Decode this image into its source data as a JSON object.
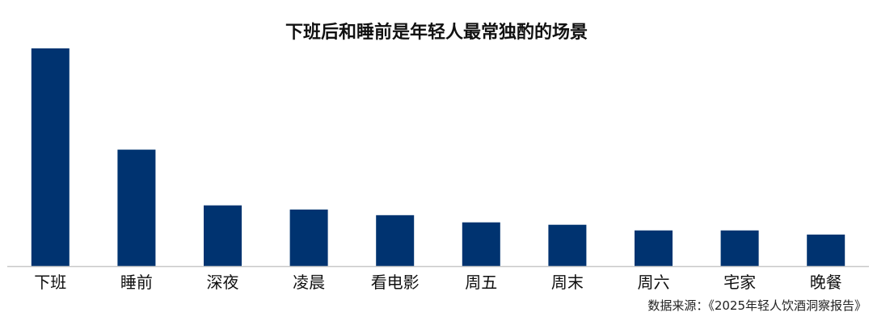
{
  "chart_data": {
    "type": "bar",
    "title": "下班后和睡前是年轻人最常独酌的场景",
    "categories": [
      "下班",
      "睡前",
      "深夜",
      "凌晨",
      "看电影",
      "周五",
      "周末",
      "周六",
      "宅家",
      "晚餐"
    ],
    "values": [
      100,
      53.5,
      27.9,
      26.0,
      23.4,
      20.1,
      19.0,
      16.4,
      16.4,
      14.5
    ],
    "xlabel": "",
    "ylabel": "",
    "ylim": [
      0,
      100
    ],
    "grid": false,
    "y_axis_shown": false,
    "bar_color": "#003370",
    "axis_color": "#c8c8c8"
  },
  "source": "数据来源：《2025年轻人饮酒洞察报告》"
}
